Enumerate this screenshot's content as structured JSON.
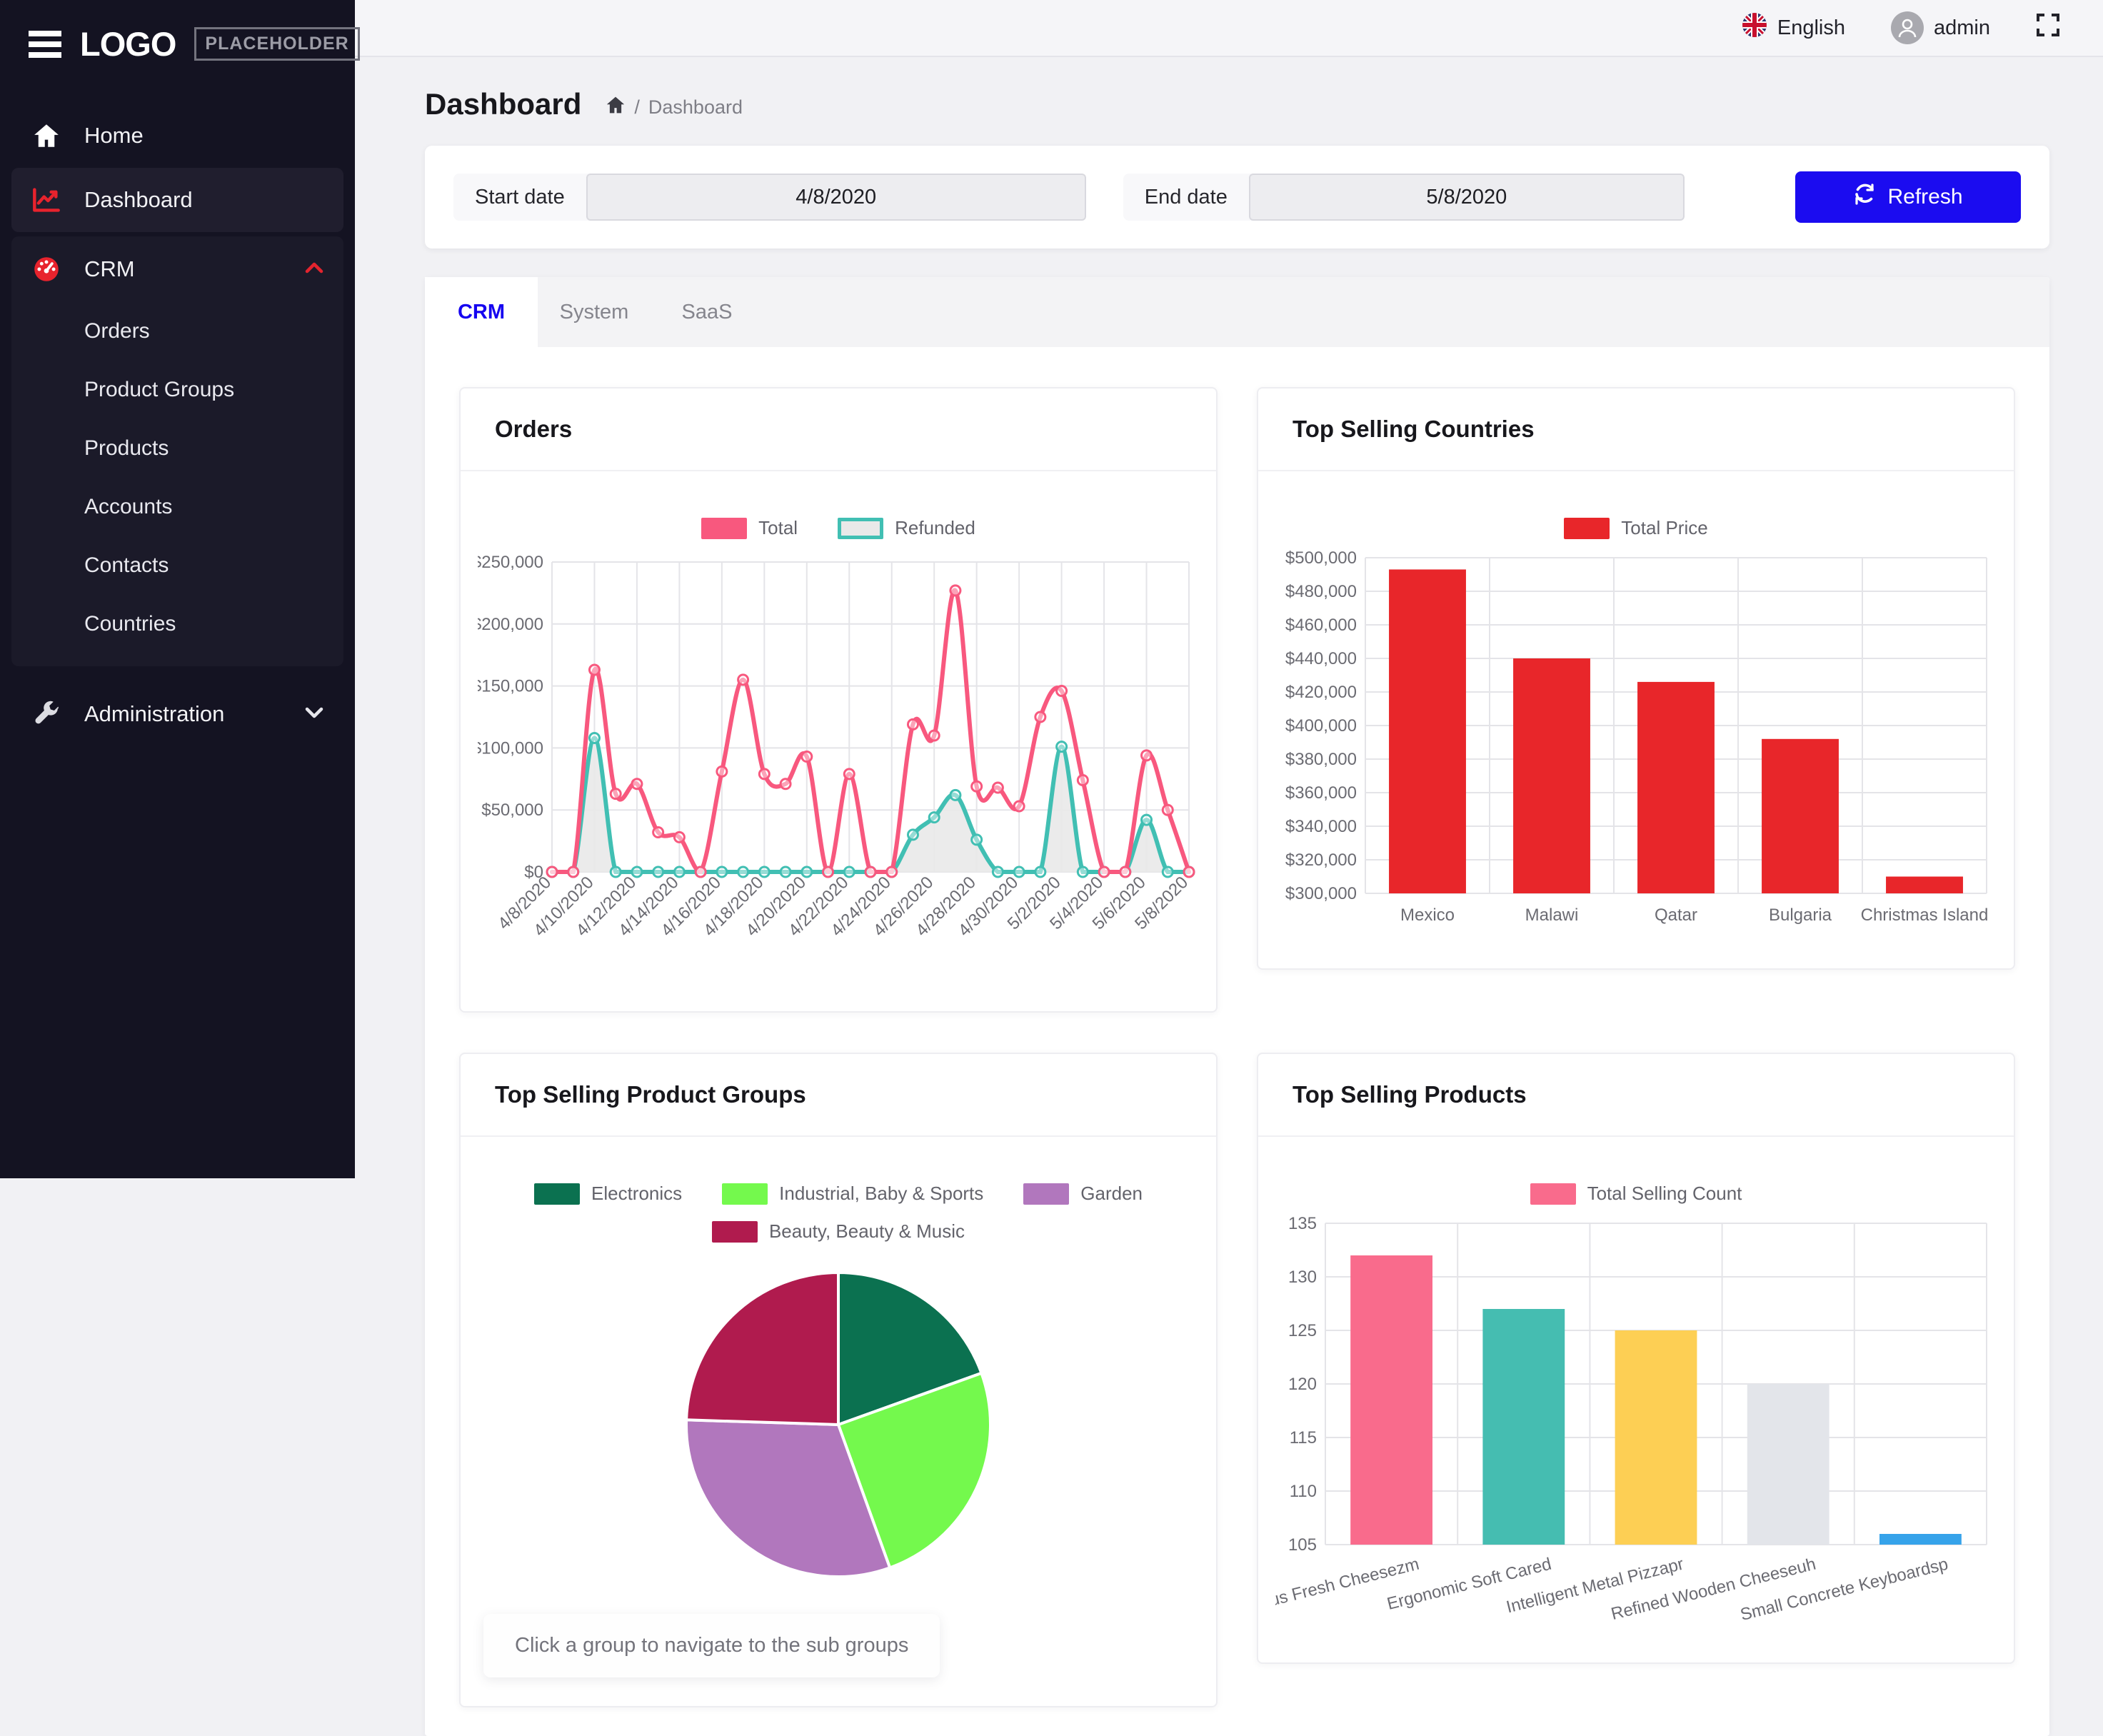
{
  "header": {
    "language": "English",
    "user": "admin"
  },
  "sidebar": {
    "brand": {
      "logo": "LOGO",
      "placeholder": "PLACEHOLDER"
    },
    "home": "Home",
    "dashboard": "Dashboard",
    "crm": "CRM",
    "crm_children": [
      "Orders",
      "Product Groups",
      "Products",
      "Accounts",
      "Contacts",
      "Countries"
    ],
    "administration": "Administration"
  },
  "page": {
    "title": "Dashboard",
    "breadcrumb_sep": "/",
    "breadcrumb_item": "Dashboard"
  },
  "filters": {
    "start_label": "Start date",
    "start_value": "4/8/2020",
    "end_label": "End date",
    "end_value": "5/8/2020",
    "refresh_label": "Refresh"
  },
  "tabs": [
    {
      "label": "CRM",
      "active": true
    },
    {
      "label": "System",
      "active": false
    },
    {
      "label": "SaaS",
      "active": false
    }
  ],
  "colors": {
    "accent_blue": "#1b0cf0",
    "active_tab_blue": "#1502f0",
    "sidebar_red": "#e8232d",
    "bar_red": "#e8262a",
    "total_pink": "#f8587e",
    "refunded_teal": "#41bfb3"
  },
  "icons": {
    "hamburger": "menu-bars",
    "home": "house",
    "dashboard": "chart-line",
    "crm": "gauge",
    "administration": "wrench",
    "crm_chevron": "chevron-up",
    "admin_chevron": "chevron-down",
    "language": "uk-flag",
    "user": "person-circle",
    "fullscreen": "expand-corners",
    "refresh": "sync-arrows",
    "breadcrumb_home": "house"
  },
  "chart_data": [
    {
      "type": "line",
      "title": "Orders",
      "x": [
        "4/8/2020",
        "4/9/2020",
        "4/10/2020",
        "4/11/2020",
        "4/12/2020",
        "4/13/2020",
        "4/14/2020",
        "4/15/2020",
        "4/16/2020",
        "4/17/2020",
        "4/18/2020",
        "4/19/2020",
        "4/20/2020",
        "4/21/2020",
        "4/22/2020",
        "4/23/2020",
        "4/24/2020",
        "4/25/2020",
        "4/26/2020",
        "4/27/2020",
        "4/28/2020",
        "4/29/2020",
        "4/30/2020",
        "5/1/2020",
        "5/2/2020",
        "5/3/2020",
        "5/4/2020",
        "5/5/2020",
        "5/6/2020",
        "5/7/2020",
        "5/8/2020"
      ],
      "x_tick_every": 2,
      "ylim": [
        0,
        250000
      ],
      "y_step": 50000,
      "y_prefix": "$",
      "grid": true,
      "legend_position": "top",
      "series": [
        {
          "name": "Total",
          "color": "#f8587e",
          "values": [
            0,
            0,
            163000,
            63000,
            71000,
            32000,
            28000,
            0,
            81000,
            155000,
            79000,
            71000,
            93000,
            0,
            79000,
            0,
            0,
            119000,
            110000,
            227000,
            69000,
            68000,
            53000,
            125000,
            146000,
            74000,
            0,
            0,
            94000,
            50000,
            0
          ]
        },
        {
          "name": "Refunded",
          "color": "#41bfb3",
          "fill": "#e9e9e9",
          "values": [
            0,
            0,
            108000,
            0,
            0,
            0,
            0,
            0,
            0,
            0,
            0,
            0,
            0,
            0,
            0,
            0,
            0,
            30000,
            44000,
            62000,
            26000,
            0,
            0,
            0,
            101000,
            0,
            0,
            0,
            42000,
            0,
            0
          ]
        }
      ]
    },
    {
      "type": "bar",
      "title": "Top Selling Countries",
      "legend": "Total Price",
      "legend_color": "#e8262a",
      "categories": [
        "Mexico",
        "Malawi",
        "Qatar",
        "Bulgaria",
        "Christmas Island"
      ],
      "values": [
        493000,
        440000,
        426000,
        392000,
        310000
      ],
      "colors": [
        "#e8262a",
        "#e8262a",
        "#e8262a",
        "#e8262a",
        "#e8262a"
      ],
      "ylim": [
        300000,
        500000
      ],
      "y_step": 20000,
      "y_prefix": "$",
      "grid": true,
      "label_rotate": 0
    },
    {
      "type": "pie",
      "title": "Top Selling Product Groups",
      "slices": [
        {
          "label": "Electronics",
          "color": "#0b7150",
          "percent": 19.5
        },
        {
          "label": "Industrial, Baby & Sports",
          "color": "#74f94d",
          "percent": 25
        },
        {
          "label": "Garden",
          "color": "#b177bd",
          "percent": 31
        },
        {
          "label": "Beauty, Beauty & Music",
          "color": "#b01b4e",
          "percent": 24.5
        }
      ],
      "note": "Click a group to navigate to the sub groups"
    },
    {
      "type": "bar",
      "title": "Top Selling Products",
      "legend": "Total Selling Count",
      "legend_color": "#f96b8c",
      "categories": [
        "Gorgeous Fresh Cheesezm",
        "Ergonomic Soft Cared",
        "Intelligent Metal Pizzapr",
        "Refined Wooden Cheeseuh",
        "Small Concrete Keyboardsp"
      ],
      "values": [
        132,
        127,
        125,
        120,
        106
      ],
      "colors": [
        "#f96b8c",
        "#45bdb1",
        "#fdcf54",
        "#e3e5ea",
        "#36a3ea"
      ],
      "ylim": [
        105,
        135
      ],
      "y_step": 5,
      "y_prefix": "",
      "grid": true,
      "label_rotate": -14
    }
  ]
}
